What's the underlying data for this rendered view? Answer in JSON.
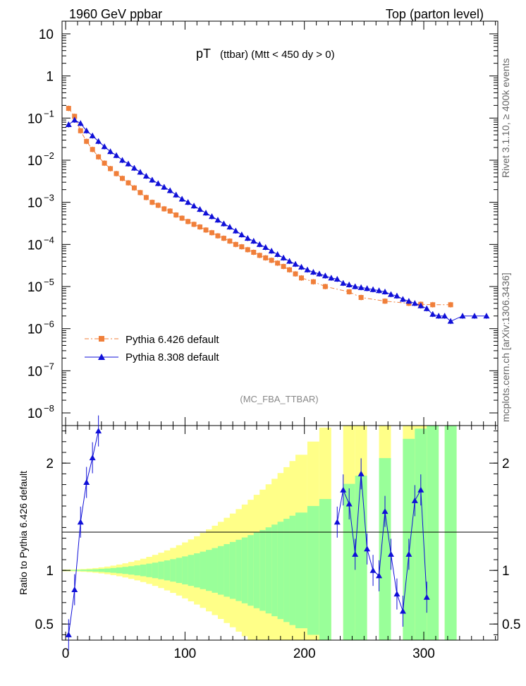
{
  "header": {
    "left": "1960 GeV ppbar",
    "right": "Top (parton level)"
  },
  "side": {
    "rivet": "Rivet 3.1.10, ≥ 400k events",
    "mcplots": "mcplots.cern.ch [arXiv:1306.3436]"
  },
  "chart_data": {
    "type": "line",
    "title_main": "pT",
    "title_sub": "(ttbar) (Mtt < 450 dy > 0)",
    "analysis_tag": "(MC_FBA_TTBAR)",
    "xlabel": "",
    "ylabel_ratio": "Ratio to Pythia 6.426 default",
    "xlim": [
      -3,
      362
    ],
    "ylim_main": [
      5e-09,
      20
    ],
    "ylim_ratio": [
      0.35,
      2.35
    ],
    "x_ticks": [
      0,
      100,
      200,
      300
    ],
    "x_tick_labels": [
      "0",
      "100",
      "200",
      "300"
    ],
    "y_ticks_main": [
      1e-08,
      1e-07,
      1e-06,
      1e-05,
      0.0001,
      0.001,
      0.01,
      0.1,
      1,
      10
    ],
    "y_tick_labels_main": [
      {
        "base": "10",
        "exp": "−8"
      },
      {
        "base": "10",
        "exp": "−7"
      },
      {
        "base": "10",
        "exp": "−6"
      },
      {
        "base": "10",
        "exp": "−5"
      },
      {
        "base": "10",
        "exp": "−4"
      },
      {
        "base": "10",
        "exp": "−3"
      },
      {
        "base": "10",
        "exp": "−2"
      },
      {
        "base": "10",
        "exp": "−1"
      },
      {
        "base": "1",
        "exp": ""
      },
      {
        "base": "10",
        "exp": ""
      }
    ],
    "y_ticks_ratio": [
      0.5,
      1,
      2
    ],
    "y_tick_labels_ratio": [
      "0.5",
      "1",
      "2"
    ],
    "series": [
      {
        "name": "Pythia 6.426 default",
        "color": "#f07f3a",
        "marker": "square",
        "x": [
          2.5,
          7.5,
          12.5,
          17.5,
          22.5,
          27.5,
          32.5,
          37.5,
          42.5,
          47.5,
          52.5,
          57.5,
          62.5,
          67.5,
          72.5,
          77.5,
          82.5,
          87.5,
          92.5,
          97.5,
          102.5,
          107.5,
          112.5,
          117.5,
          122.5,
          127.5,
          132.5,
          137.5,
          142.5,
          147.5,
          152.5,
          157.5,
          162.5,
          167.5,
          172.5,
          177.5,
          182.5,
          187.5,
          192.5,
          197.5,
          207.5,
          217.5,
          237.5,
          247.5,
          267.5,
          287.5,
          297.5,
          307.5,
          322.5
        ],
        "y": [
          0.17,
          0.11,
          0.05,
          0.028,
          0.018,
          0.012,
          0.0085,
          0.0063,
          0.0048,
          0.0037,
          0.0029,
          0.0022,
          0.0017,
          0.0013,
          0.001,
          0.00085,
          0.0007,
          0.00062,
          0.0005,
          0.00042,
          0.00035,
          0.0003,
          0.00026,
          0.00022,
          0.00019,
          0.00016,
          0.00014,
          0.00012,
          0.0001,
          8.8e-05,
          7.5e-05,
          6.5e-05,
          5.5e-05,
          4.8e-05,
          4.2e-05,
          3.6e-05,
          3e-05,
          2.5e-05,
          2e-05,
          1.6e-05,
          1.3e-05,
          1e-05,
          7.5e-06,
          5.5e-06,
          4.5e-06,
          4e-06,
          3.8e-06,
          3.7e-06,
          3.7e-06
        ]
      },
      {
        "name": "Pythia 8.308 default",
        "color": "#1010d8",
        "marker": "triangle",
        "x": [
          2.5,
          7.5,
          12.5,
          17.5,
          22.5,
          27.5,
          32.5,
          37.5,
          42.5,
          47.5,
          52.5,
          57.5,
          62.5,
          67.5,
          72.5,
          77.5,
          82.5,
          87.5,
          92.5,
          97.5,
          102.5,
          107.5,
          112.5,
          117.5,
          122.5,
          127.5,
          132.5,
          137.5,
          142.5,
          147.5,
          152.5,
          157.5,
          162.5,
          167.5,
          172.5,
          177.5,
          182.5,
          187.5,
          192.5,
          197.5,
          202.5,
          207.5,
          212.5,
          217.5,
          222.5,
          227.5,
          232.5,
          237.5,
          242.5,
          247.5,
          252.5,
          257.5,
          262.5,
          267.5,
          272.5,
          277.5,
          282.5,
          287.5,
          292.5,
          297.5,
          302.5,
          307.5,
          312.5,
          317.5,
          322.5,
          332.5,
          342.5,
          352.5
        ],
        "y": [
          0.07,
          0.09,
          0.075,
          0.05,
          0.038,
          0.028,
          0.021,
          0.016,
          0.013,
          0.01,
          0.0082,
          0.0065,
          0.0052,
          0.0042,
          0.0034,
          0.0028,
          0.0023,
          0.0019,
          0.0015,
          0.0012,
          0.001,
          0.00082,
          0.00068,
          0.00056,
          0.00046,
          0.00038,
          0.00031,
          0.00026,
          0.00021,
          0.00017,
          0.00014,
          0.00012,
          0.0001,
          8.5e-05,
          7e-05,
          5.8e-05,
          4.8e-05,
          4e-05,
          3.4e-05,
          2.9e-05,
          2.5e-05,
          2.2e-05,
          2e-05,
          1.8e-05,
          1.6e-05,
          1.5e-05,
          1.2e-05,
          1.1e-05,
          1e-05,
          9.5e-06,
          9e-06,
          8.5e-06,
          8e-06,
          7.5e-06,
          6.5e-06,
          6e-06,
          5e-06,
          4.5e-06,
          4e-06,
          3.5e-06,
          3e-06,
          2.2e-06,
          2e-06,
          2e-06,
          1.5e-06,
          2e-06,
          2e-06,
          2e-06
        ]
      }
    ],
    "ratio_series": {
      "name": "Pythia 8.308 default",
      "x": [
        2.5,
        7.5,
        12.5,
        17.5,
        22.5,
        27.5,
        227.5,
        232.5,
        237.5,
        242.5,
        247.5,
        252.5,
        257.5,
        262.5,
        267.5,
        272.5,
        277.5,
        282.5,
        287.5,
        292.5,
        297.5,
        302.5
      ],
      "y": [
        0.4,
        0.82,
        1.45,
        1.82,
        2.05,
        2.3,
        1.45,
        1.75,
        1.62,
        1.15,
        1.9,
        1.2,
        1.0,
        0.95,
        1.55,
        1.15,
        0.78,
        0.62,
        1.15,
        1.65,
        1.75,
        0.75
      ]
    }
  }
}
